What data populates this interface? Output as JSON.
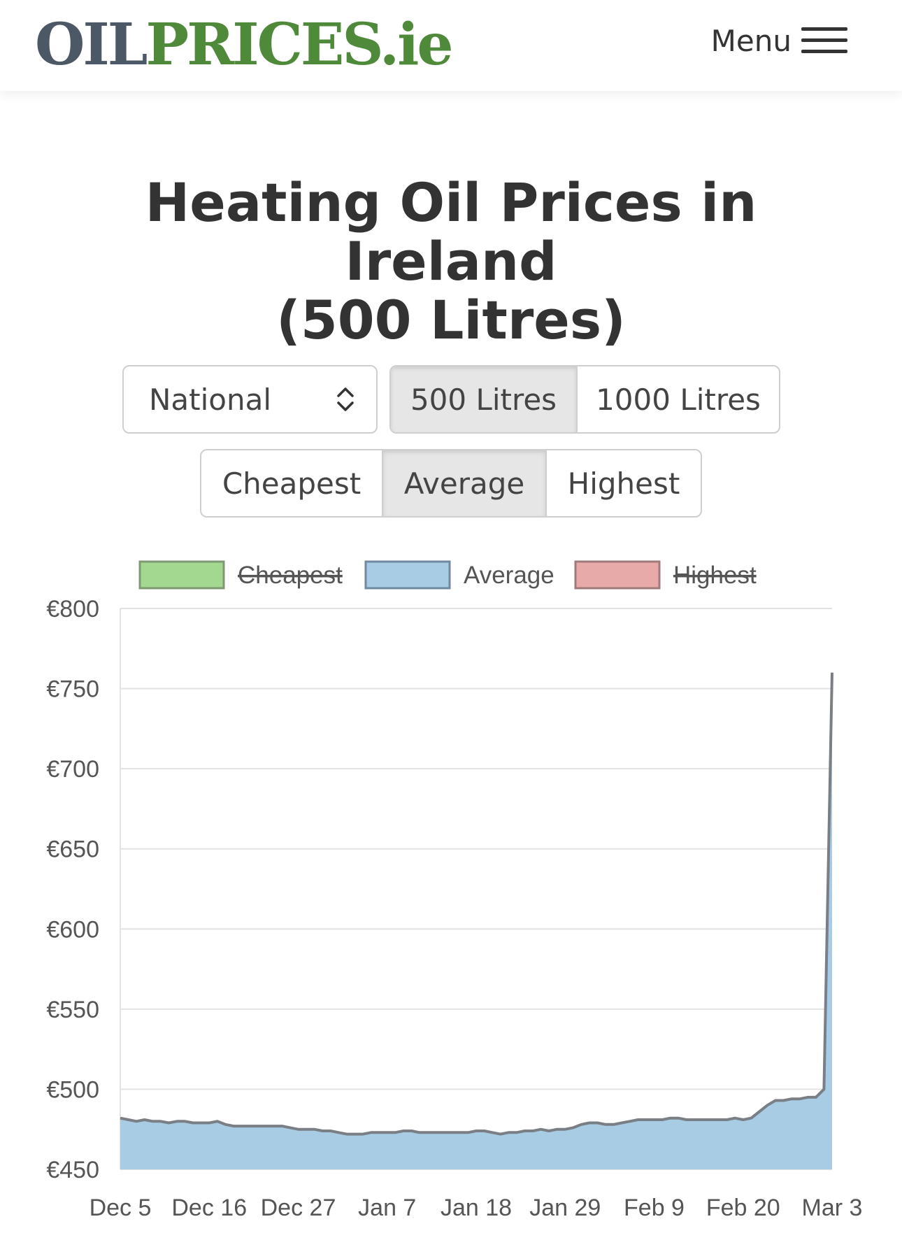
{
  "header": {
    "logo_part1": "OIL",
    "logo_part2": "PRICES",
    "logo_part3": ".ie",
    "menu_label": "Menu"
  },
  "page": {
    "title_line1": "Heating Oil Prices in Ireland",
    "title_line2": "(500 Litres)"
  },
  "controls": {
    "region_select": "National",
    "volume_options": [
      "500 Litres",
      "1000 Litres"
    ],
    "volume_selected": "500 Litres",
    "stat_options": [
      "Cheapest",
      "Average",
      "Highest"
    ],
    "stat_selected": "Average"
  },
  "colors": {
    "cheapest_fill": "#a3d891",
    "average_fill": "#a7cce4",
    "highest_fill": "#e8a9a9",
    "line": "#7a7f86",
    "grid": "#e3e3e3"
  },
  "chart_data": {
    "type": "area",
    "ylim": [
      450,
      800
    ],
    "y_ticks": [
      "€450",
      "€500",
      "€550",
      "€600",
      "€650",
      "€700",
      "€750",
      "€800"
    ],
    "x_tick_labels": [
      "Dec 5",
      "Dec 16",
      "Dec 27",
      "Jan 7",
      "Jan 18",
      "Jan 29",
      "Feb 9",
      "Feb 20",
      "Mar 3"
    ],
    "legend": [
      {
        "name": "Cheapest",
        "hidden": true
      },
      {
        "name": "Average",
        "hidden": false
      },
      {
        "name": "Highest",
        "hidden": true
      }
    ],
    "series": [
      {
        "name": "Average",
        "x": [
          "Dec 5",
          "Dec 6",
          "Dec 7",
          "Dec 8",
          "Dec 9",
          "Dec 10",
          "Dec 11",
          "Dec 12",
          "Dec 13",
          "Dec 14",
          "Dec 15",
          "Dec 16",
          "Dec 17",
          "Dec 18",
          "Dec 19",
          "Dec 20",
          "Dec 21",
          "Dec 22",
          "Dec 23",
          "Dec 24",
          "Dec 25",
          "Dec 26",
          "Dec 27",
          "Dec 28",
          "Dec 29",
          "Dec 30",
          "Dec 31",
          "Jan 1",
          "Jan 2",
          "Jan 3",
          "Jan 4",
          "Jan 5",
          "Jan 6",
          "Jan 7",
          "Jan 8",
          "Jan 9",
          "Jan 10",
          "Jan 11",
          "Jan 12",
          "Jan 13",
          "Jan 14",
          "Jan 15",
          "Jan 16",
          "Jan 17",
          "Jan 18",
          "Jan 19",
          "Jan 20",
          "Jan 21",
          "Jan 22",
          "Jan 23",
          "Jan 24",
          "Jan 25",
          "Jan 26",
          "Jan 27",
          "Jan 28",
          "Jan 29",
          "Jan 30",
          "Jan 31",
          "Feb 1",
          "Feb 2",
          "Feb 3",
          "Feb 4",
          "Feb 5",
          "Feb 6",
          "Feb 7",
          "Feb 8",
          "Feb 9",
          "Feb 10",
          "Feb 11",
          "Feb 12",
          "Feb 13",
          "Feb 14",
          "Feb 15",
          "Feb 16",
          "Feb 17",
          "Feb 18",
          "Feb 19",
          "Feb 20",
          "Feb 21",
          "Feb 22",
          "Feb 23",
          "Feb 24",
          "Feb 25",
          "Feb 26",
          "Feb 27",
          "Feb 28",
          "Mar 1",
          "Mar 2",
          "Mar 3"
        ],
        "values": [
          482,
          481,
          480,
          481,
          480,
          480,
          479,
          480,
          480,
          479,
          479,
          479,
          480,
          478,
          477,
          477,
          477,
          477,
          477,
          477,
          477,
          476,
          475,
          475,
          475,
          474,
          474,
          473,
          472,
          472,
          472,
          473,
          473,
          473,
          473,
          474,
          474,
          473,
          473,
          473,
          473,
          473,
          473,
          473,
          474,
          474,
          473,
          472,
          473,
          473,
          474,
          474,
          475,
          474,
          475,
          475,
          476,
          478,
          479,
          479,
          478,
          478,
          479,
          480,
          481,
          481,
          481,
          481,
          482,
          482,
          481,
          481,
          481,
          481,
          481,
          481,
          482,
          481,
          482,
          486,
          490,
          493,
          493,
          494,
          494,
          495,
          495,
          500,
          760
        ]
      }
    ]
  }
}
